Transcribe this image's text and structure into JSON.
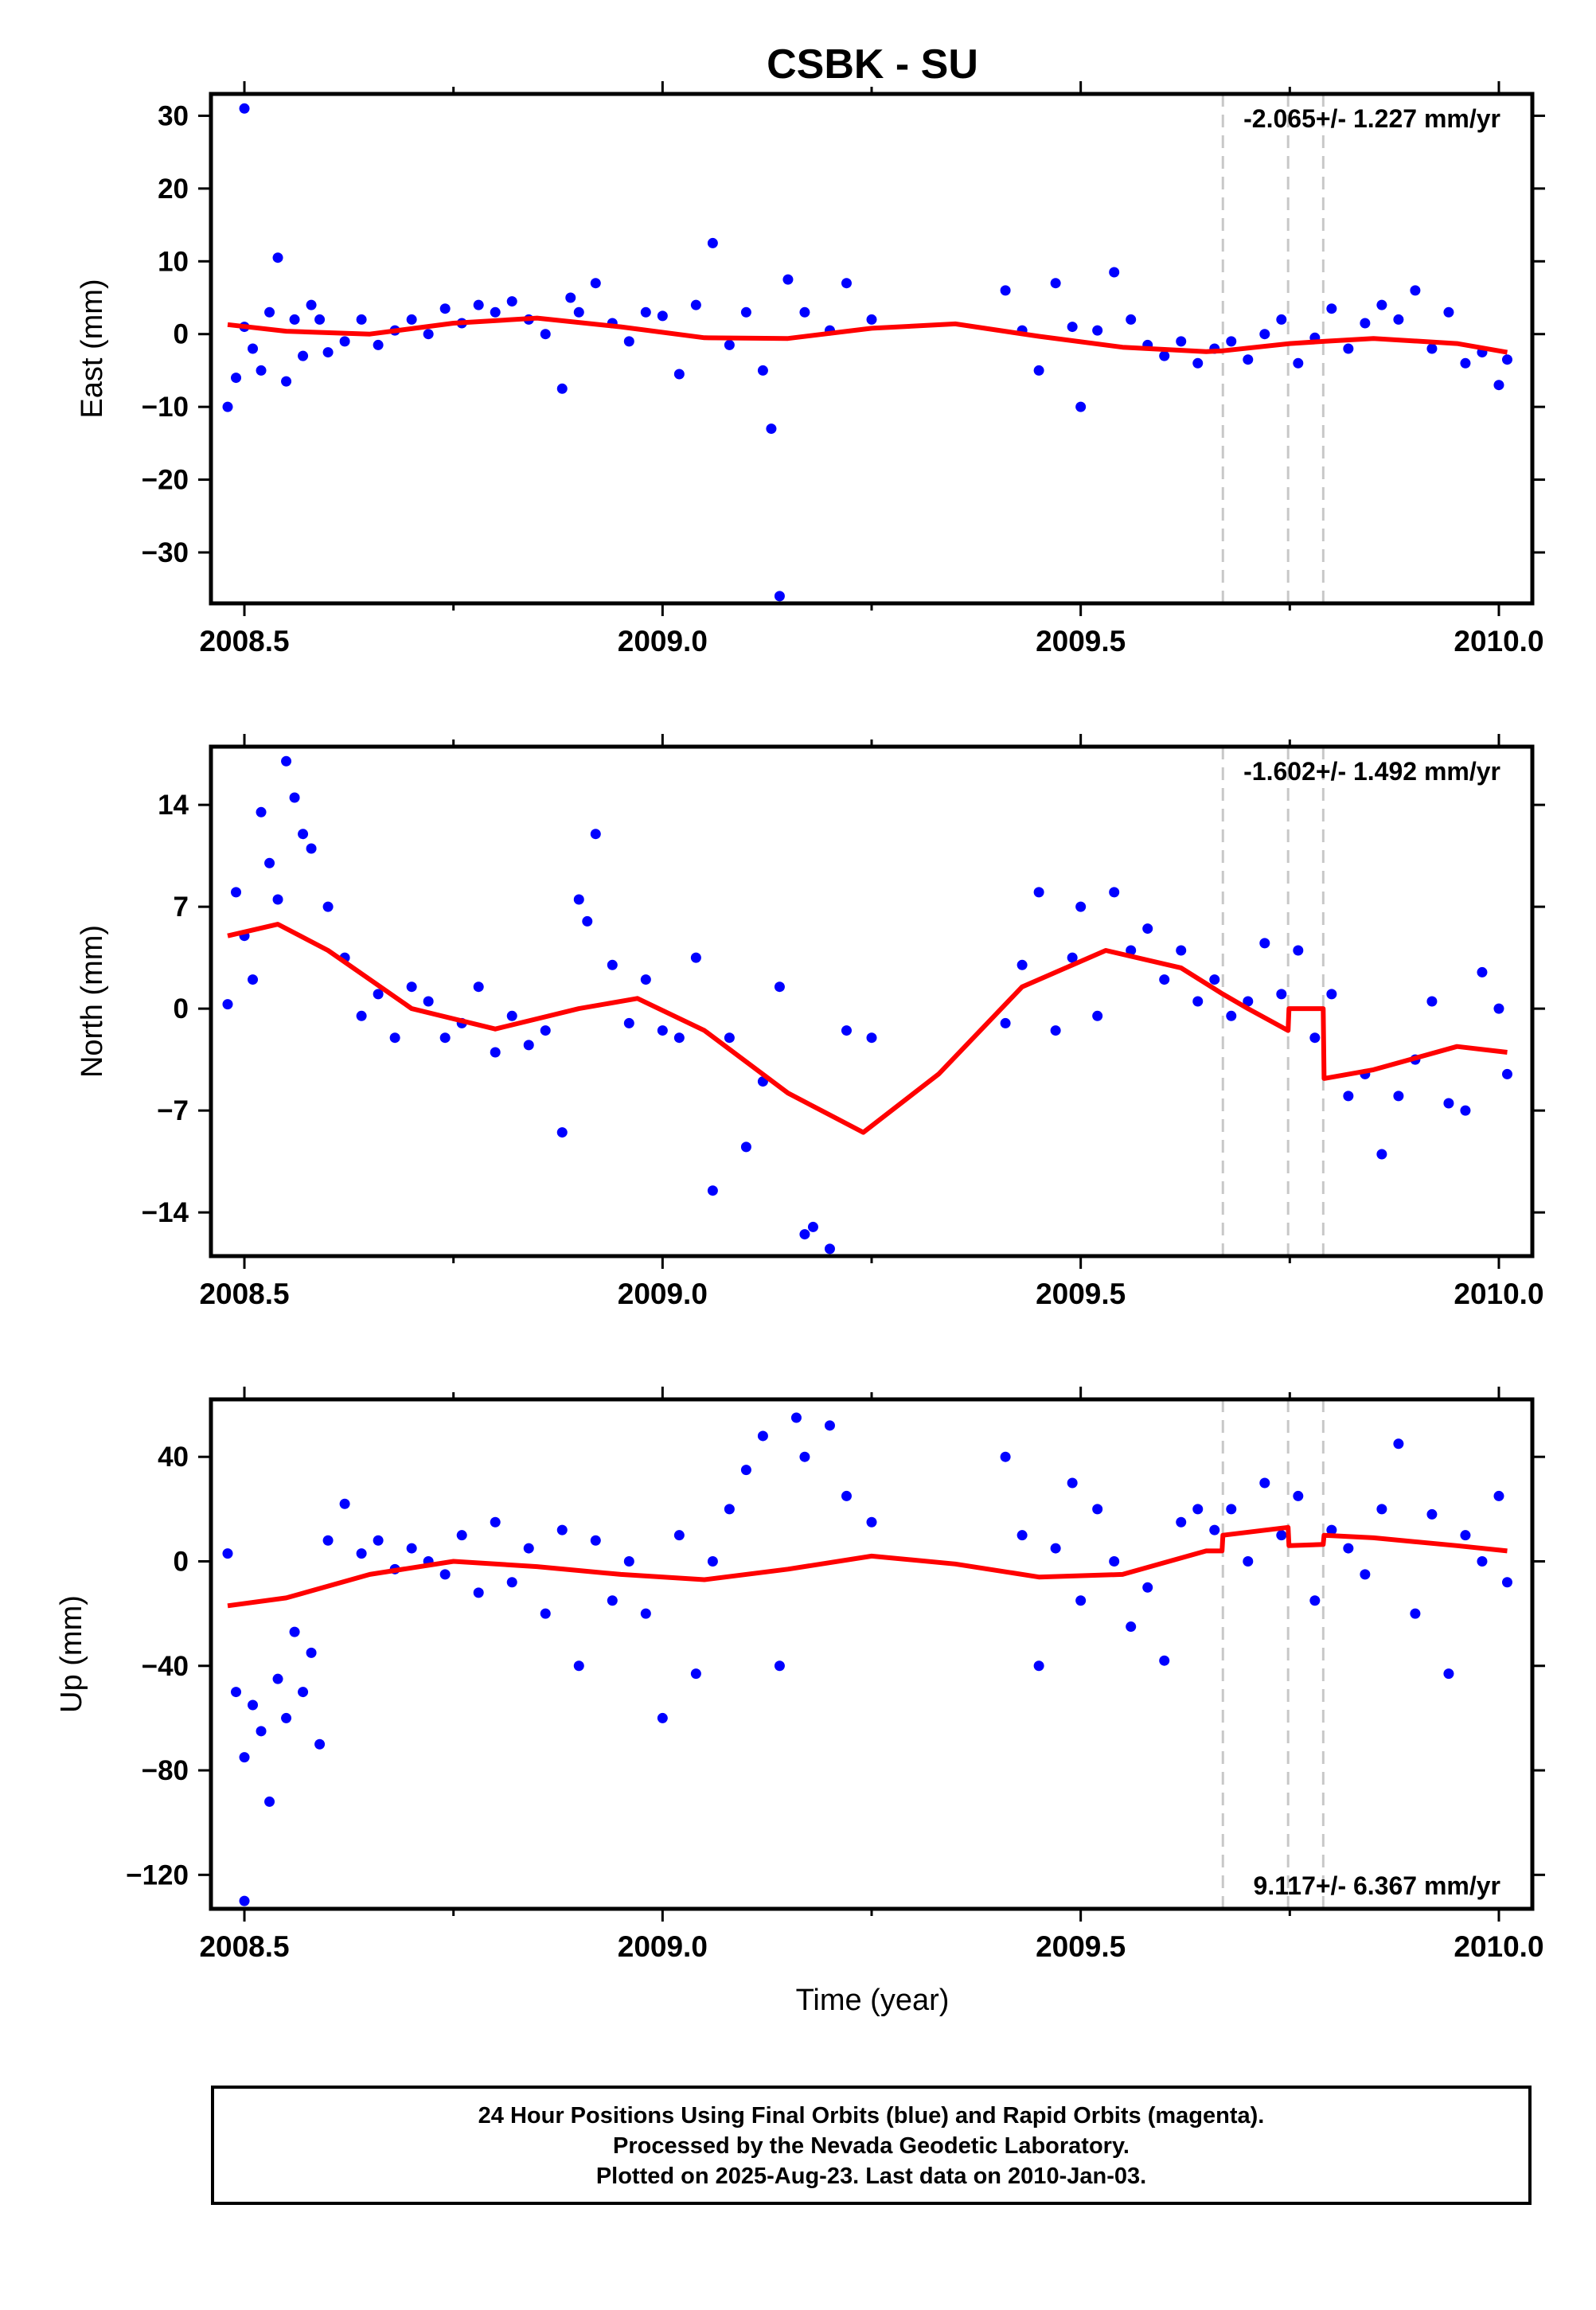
{
  "title": "CSBK - SU",
  "xlabel": "Time (year)",
  "footer": {
    "line1": "24 Hour Positions Using Final Orbits (blue) and Rapid Orbits (magenta).",
    "line2": "Processed by the Nevada Geodetic Laboratory.",
    "line3": "Plotted on 2025-Aug-23. Last data on 2010-Jan-03."
  },
  "colors": {
    "final_orbits": "#0000ff",
    "model_fit": "#ff0000",
    "step_lines": "#c8c8c8"
  },
  "chart_data": [
    {
      "type": "scatter",
      "ylabel": "East (mm)",
      "xlim": [
        2008.46,
        2010.04
      ],
      "ylim": [
        -37,
        33
      ],
      "xticks": [
        "2008.5",
        "2009.0",
        "2009.5",
        "2010.0"
      ],
      "yticks": [
        "30",
        "20",
        "10",
        "0",
        "−10",
        "−20",
        "−30"
      ],
      "ytick_values": [
        30,
        20,
        10,
        0,
        -10,
        -20,
        -30
      ],
      "rate": "-2.065+/- 1.227 mm/yr",
      "rate_position": "top-right",
      "step_epochs": [
        2009.67,
        2009.748,
        2009.79
      ],
      "model_x": [
        2008.48,
        2008.55,
        2008.65,
        2008.75,
        2008.85,
        2008.95,
        2009.05,
        2009.15,
        2009.25,
        2009.35,
        2009.45,
        2009.55,
        2009.65,
        2009.67,
        2009.75,
        2009.79,
        2009.85,
        2009.95,
        2010.01
      ],
      "model_y": [
        1.3,
        0.4,
        0.0,
        1.5,
        2.2,
        1.0,
        -0.5,
        -0.6,
        0.8,
        1.4,
        -0.3,
        -1.8,
        -2.4,
        -2.3,
        -1.3,
        -1.0,
        -0.6,
        -1.3,
        -2.5
      ],
      "x": [
        2008.48,
        2008.49,
        2008.5,
        2008.5,
        2008.51,
        2008.52,
        2008.53,
        2008.54,
        2008.55,
        2008.56,
        2008.57,
        2008.58,
        2008.59,
        2008.6,
        2008.62,
        2008.64,
        2008.66,
        2008.68,
        2008.7,
        2008.72,
        2008.74,
        2008.76,
        2008.78,
        2008.8,
        2008.82,
        2008.84,
        2008.86,
        2008.88,
        2008.89,
        2008.9,
        2008.92,
        2008.94,
        2008.96,
        2008.98,
        2009.0,
        2009.02,
        2009.04,
        2009.06,
        2009.08,
        2009.1,
        2009.12,
        2009.13,
        2009.14,
        2009.15,
        2009.17,
        2009.2,
        2009.22,
        2009.25,
        2009.41,
        2009.43,
        2009.45,
        2009.47,
        2009.49,
        2009.5,
        2009.52,
        2009.54,
        2009.56,
        2009.58,
        2009.6,
        2009.62,
        2009.64,
        2009.66,
        2009.68,
        2009.7,
        2009.72,
        2009.74,
        2009.76,
        2009.78,
        2009.8,
        2009.82,
        2009.84,
        2009.86,
        2009.88,
        2009.9,
        2009.92,
        2009.94,
        2009.96,
        2009.98,
        2010.0,
        2010.01
      ],
      "y": [
        -10.0,
        -6.0,
        1.0,
        31.0,
        -2.0,
        -5.0,
        3.0,
        10.5,
        -6.5,
        2.0,
        -3.0,
        4.0,
        2.0,
        -2.5,
        -1.0,
        2.0,
        -1.5,
        0.5,
        2.0,
        0.0,
        3.5,
        1.5,
        4.0,
        3.0,
        4.5,
        2.0,
        0.0,
        -7.5,
        5.0,
        3.0,
        7.0,
        1.5,
        -1.0,
        3.0,
        2.5,
        -5.5,
        4.0,
        12.5,
        -1.5,
        3.0,
        -5.0,
        -13.0,
        -36.0,
        7.5,
        3.0,
        0.5,
        7.0,
        2.0,
        6.0,
        0.5,
        -5.0,
        7.0,
        1.0,
        -10.0,
        0.5,
        8.5,
        2.0,
        -1.5,
        -3.0,
        -1.0,
        -4.0,
        -2.0,
        -1.0,
        -3.5,
        0.0,
        2.0,
        -4.0,
        -0.5,
        3.5,
        -2.0,
        1.5,
        4.0,
        2.0,
        6.0,
        -2.0,
        3.0,
        -4.0,
        -2.5,
        -7.0,
        -3.5
      ]
    },
    {
      "type": "scatter",
      "ylabel": "North (mm)",
      "xlim": [
        2008.46,
        2010.04
      ],
      "ylim": [
        -17,
        18
      ],
      "xticks": [
        "2008.5",
        "2009.0",
        "2009.5",
        "2010.0"
      ],
      "yticks": [
        "14",
        "7",
        "0",
        "−7",
        "−14"
      ],
      "ytick_values": [
        14,
        7,
        0,
        -7,
        -14
      ],
      "rate": "-1.602+/- 1.492 mm/yr",
      "rate_position": "top-right",
      "step_epochs": [
        2009.67,
        2009.748,
        2009.79
      ],
      "model_x": [
        2008.48,
        2008.54,
        2008.6,
        2008.7,
        2008.8,
        2008.9,
        2008.97,
        2009.05,
        2009.15,
        2009.24,
        2009.33,
        2009.43,
        2009.53,
        2009.62,
        2009.67,
        2009.7,
        2009.748,
        2009.749,
        2009.79,
        2009.791,
        2009.85,
        2009.95,
        2010.01
      ],
      "model_y": [
        5.0,
        5.8,
        4.0,
        0.0,
        -1.4,
        0.0,
        0.7,
        -1.5,
        -5.8,
        -8.5,
        -4.5,
        1.5,
        4.0,
        2.8,
        1.0,
        0.0,
        -1.5,
        0.0,
        0.0,
        -4.8,
        -4.2,
        -2.6,
        -3.0
      ],
      "x": [
        2008.48,
        2008.49,
        2008.5,
        2008.51,
        2008.52,
        2008.53,
        2008.54,
        2008.55,
        2008.56,
        2008.57,
        2008.58,
        2008.6,
        2008.62,
        2008.64,
        2008.66,
        2008.68,
        2008.7,
        2008.72,
        2008.74,
        2008.76,
        2008.78,
        2008.8,
        2008.82,
        2008.84,
        2008.86,
        2008.88,
        2008.9,
        2008.91,
        2008.92,
        2008.94,
        2008.96,
        2008.98,
        2009.0,
        2009.02,
        2009.04,
        2009.06,
        2009.08,
        2009.1,
        2009.12,
        2009.14,
        2009.17,
        2009.18,
        2009.2,
        2009.22,
        2009.25,
        2009.41,
        2009.43,
        2009.45,
        2009.47,
        2009.49,
        2009.5,
        2009.52,
        2009.54,
        2009.56,
        2009.58,
        2009.6,
        2009.62,
        2009.64,
        2009.66,
        2009.68,
        2009.7,
        2009.72,
        2009.74,
        2009.76,
        2009.78,
        2009.8,
        2009.82,
        2009.84,
        2009.86,
        2009.88,
        2009.9,
        2009.92,
        2009.94,
        2009.96,
        2009.98,
        2010.0,
        2010.01
      ],
      "y": [
        0.3,
        8.0,
        5.0,
        2.0,
        13.5,
        10.0,
        7.5,
        17.0,
        14.5,
        12.0,
        11.0,
        7.0,
        3.5,
        -0.5,
        1.0,
        -2.0,
        1.5,
        0.5,
        -2.0,
        -1.0,
        1.5,
        -3.0,
        -0.5,
        -2.5,
        -1.5,
        -8.5,
        7.5,
        6.0,
        12.0,
        3.0,
        -1.0,
        2.0,
        -1.5,
        -2.0,
        3.5,
        -12.5,
        -2.0,
        -9.5,
        -5.0,
        1.5,
        -15.5,
        -15.0,
        -16.5,
        -1.5,
        -2.0,
        -1.0,
        3.0,
        8.0,
        -1.5,
        3.5,
        7.0,
        -0.5,
        8.0,
        4.0,
        5.5,
        2.0,
        4.0,
        0.5,
        2.0,
        -0.5,
        0.5,
        4.5,
        1.0,
        4.0,
        -2.0,
        1.0,
        -6.0,
        -4.5,
        -10.0,
        -6.0,
        -3.5,
        0.5,
        -6.5,
        -7.0,
        2.5,
        0.0,
        -4.5
      ]
    },
    {
      "type": "scatter",
      "ylabel": "Up (mm)",
      "xlim": [
        2008.46,
        2010.04
      ],
      "ylim": [
        -133,
        62
      ],
      "xticks": [
        "2008.5",
        "2009.0",
        "2009.5",
        "2010.0"
      ],
      "yticks": [
        "40",
        "0",
        "−40",
        "−80",
        "−120"
      ],
      "ytick_values": [
        40,
        0,
        -40,
        -80,
        -120
      ],
      "rate": "9.117+/- 6.367 mm/yr",
      "rate_position": "bottom-right",
      "step_epochs": [
        2009.67,
        2009.748,
        2009.79
      ],
      "model_x": [
        2008.48,
        2008.55,
        2008.65,
        2008.75,
        2008.85,
        2008.95,
        2009.05,
        2009.15,
        2009.25,
        2009.35,
        2009.45,
        2009.55,
        2009.65,
        2009.669,
        2009.67,
        2009.748,
        2009.749,
        2009.79,
        2009.791,
        2009.85,
        2009.95,
        2010.01
      ],
      "model_y": [
        -17.0,
        -14.0,
        -5.0,
        0.0,
        -2.0,
        -5.0,
        -7.0,
        -3.0,
        2.0,
        -1.0,
        -6.0,
        -5.0,
        4.0,
        4.0,
        10.0,
        13.0,
        6.0,
        6.5,
        10.0,
        9.0,
        6.0,
        4.0
      ],
      "x": [
        2008.48,
        2008.49,
        2008.5,
        2008.5,
        2008.51,
        2008.52,
        2008.53,
        2008.54,
        2008.55,
        2008.56,
        2008.57,
        2008.58,
        2008.59,
        2008.6,
        2008.62,
        2008.64,
        2008.66,
        2008.68,
        2008.7,
        2008.72,
        2008.74,
        2008.76,
        2008.78,
        2008.8,
        2008.82,
        2008.84,
        2008.86,
        2008.88,
        2008.9,
        2008.92,
        2008.94,
        2008.96,
        2008.98,
        2009.0,
        2009.02,
        2009.04,
        2009.06,
        2009.08,
        2009.1,
        2009.12,
        2009.14,
        2009.16,
        2009.17,
        2009.2,
        2009.22,
        2009.25,
        2009.41,
        2009.43,
        2009.45,
        2009.47,
        2009.49,
        2009.5,
        2009.52,
        2009.54,
        2009.56,
        2009.58,
        2009.6,
        2009.62,
        2009.64,
        2009.66,
        2009.68,
        2009.7,
        2009.72,
        2009.74,
        2009.76,
        2009.78,
        2009.8,
        2009.82,
        2009.84,
        2009.86,
        2009.88,
        2009.9,
        2009.92,
        2009.94,
        2009.96,
        2009.98,
        2010.0,
        2010.01
      ],
      "y": [
        3.0,
        -50.0,
        -75.0,
        -130.0,
        -55.0,
        -65.0,
        -92.0,
        -45.0,
        -60.0,
        -27.0,
        -50.0,
        -35.0,
        -70.0,
        8.0,
        22.0,
        3.0,
        8.0,
        -3.0,
        5.0,
        0.0,
        -5.0,
        10.0,
        -12.0,
        15.0,
        -8.0,
        5.0,
        -20.0,
        12.0,
        -40.0,
        8.0,
        -15.0,
        0.0,
        -20.0,
        -60.0,
        10.0,
        -43.0,
        0.0,
        20.0,
        35.0,
        48.0,
        -40.0,
        55.0,
        40.0,
        52.0,
        25.0,
        15.0,
        40.0,
        10.0,
        -40.0,
        5.0,
        30.0,
        -15.0,
        20.0,
        0.0,
        -25.0,
        -10.0,
        -38.0,
        15.0,
        20.0,
        12.0,
        20.0,
        0.0,
        30.0,
        10.0,
        25.0,
        -15.0,
        12.0,
        5.0,
        -5.0,
        20.0,
        45.0,
        -20.0,
        18.0,
        -43.0,
        10.0,
        0.0,
        25.0,
        -8.0
      ]
    }
  ]
}
